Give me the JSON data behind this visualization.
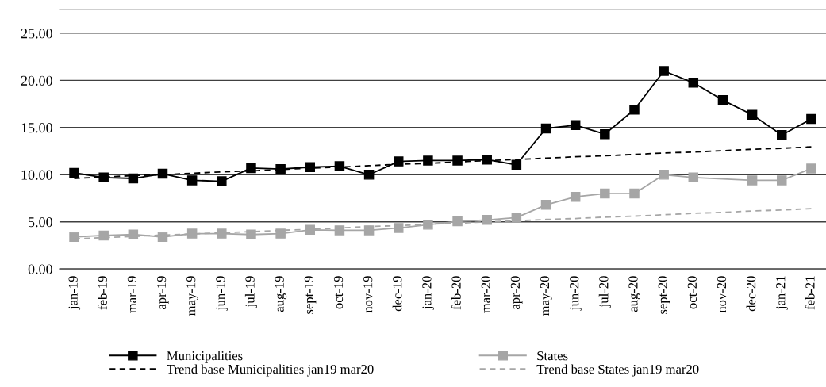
{
  "chart_data": {
    "type": "line",
    "categories": [
      "jan-19",
      "feb-19",
      "mar-19",
      "apr-19",
      "may-19",
      "jun-19",
      "jul-19",
      "aug-19",
      "sept-19",
      "oct-19",
      "nov-19",
      "dec-19",
      "jan-20",
      "feb-20",
      "mar-20",
      "apr-20",
      "may-20",
      "jun-20",
      "jul-20",
      "aug-20",
      "sept-20",
      "oct-20",
      "nov-20",
      "dec-20",
      "jan-21",
      "feb-21"
    ],
    "series": [
      {
        "name": "Municipalities",
        "color": "#000000",
        "marker": "square",
        "line_style": "solid",
        "values": [
          10.2,
          9.7,
          9.6,
          10.1,
          9.4,
          9.3,
          10.7,
          10.6,
          10.8,
          10.9,
          10.0,
          11.4,
          11.5,
          11.5,
          11.6,
          11.05,
          14.9,
          15.25,
          14.3,
          16.9,
          21.0,
          19.75,
          17.9,
          16.35,
          14.2,
          15.9
        ]
      },
      {
        "name": "Trend base Municipalities jan19 mar20",
        "color": "#000000",
        "marker": "none",
        "line_style": "dashed",
        "values": [
          9.6,
          9.75,
          9.9,
          10.0,
          10.15,
          10.3,
          10.4,
          10.55,
          10.7,
          10.8,
          10.95,
          11.1,
          11.2,
          11.35,
          11.5,
          11.6,
          11.75,
          11.9,
          12.0,
          12.15,
          12.3,
          12.4,
          12.55,
          12.7,
          12.8,
          12.95
        ]
      },
      {
        "name": "States",
        "color": "#a6a6a6",
        "marker": "square",
        "line_style": "solid",
        "values": [
          3.4,
          3.55,
          3.65,
          3.4,
          3.75,
          3.75,
          3.65,
          3.75,
          4.15,
          4.1,
          4.1,
          4.35,
          4.7,
          5.05,
          5.2,
          5.45,
          6.8,
          7.65,
          8.0,
          8.0,
          10.0,
          9.7,
          null,
          9.4,
          9.4,
          10.65
        ]
      },
      {
        "name": "Trend base States jan19 mar20",
        "color": "#a6a6a6",
        "marker": "none",
        "line_style": "dashed",
        "values": [
          3.2,
          3.33,
          3.45,
          3.6,
          3.7,
          3.85,
          3.95,
          4.1,
          4.2,
          4.35,
          4.5,
          4.6,
          4.75,
          4.85,
          5.0,
          5.1,
          5.25,
          5.35,
          5.5,
          5.6,
          5.75,
          5.9,
          6.0,
          6.15,
          6.25,
          6.4
        ]
      }
    ],
    "ylim": [
      0,
      27.5
    ],
    "yticks": [
      {
        "value": 0,
        "label": "0.00"
      },
      {
        "value": 5,
        "label": "5.00"
      },
      {
        "value": 10,
        "label": "10.00"
      },
      {
        "value": 15,
        "label": "15.00"
      },
      {
        "value": 20,
        "label": "20.00"
      },
      {
        "value": 25,
        "label": "25.00"
      }
    ],
    "grid": "y",
    "legend": "bottom"
  }
}
